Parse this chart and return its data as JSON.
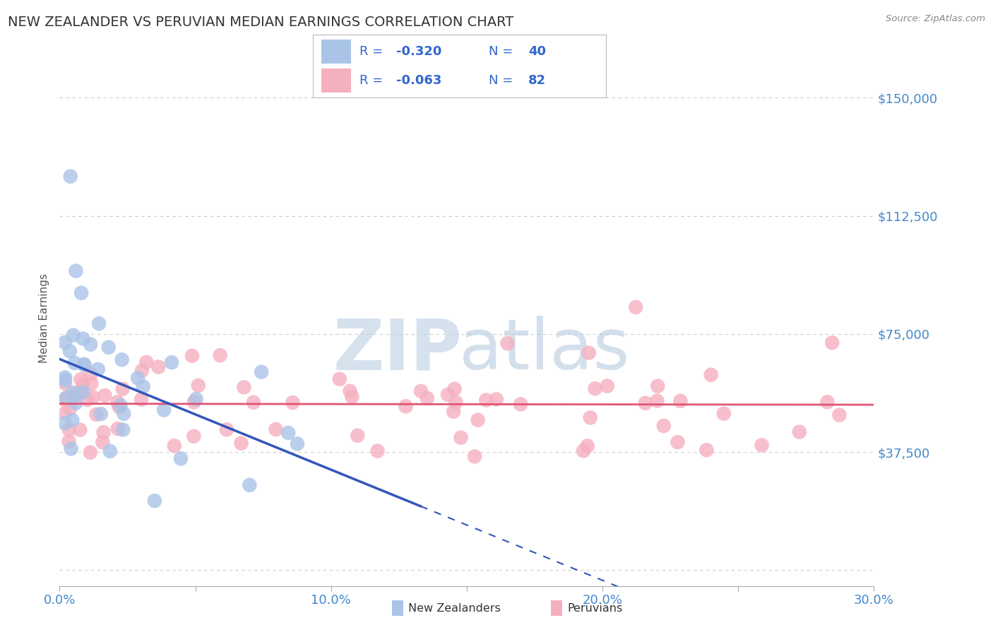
{
  "title": "NEW ZEALANDER VS PERUVIAN MEDIAN EARNINGS CORRELATION CHART",
  "source": "Source: ZipAtlas.com",
  "ylabel": "Median Earnings",
  "xlim": [
    0.0,
    0.3
  ],
  "ylim": [
    -5000,
    165000
  ],
  "yticks": [
    0,
    37500,
    75000,
    112500,
    150000
  ],
  "ytick_labels": [
    "",
    "$37,500",
    "$75,000",
    "$112,500",
    "$150,000"
  ],
  "xticks": [
    0.0,
    0.05,
    0.1,
    0.15,
    0.2,
    0.25,
    0.3
  ],
  "xtick_labels": [
    "0.0%",
    "",
    "10.0%",
    "",
    "20.0%",
    "",
    "30.0%"
  ],
  "grid_color": "#cccccc",
  "background_color": "#ffffff",
  "nz_color": "#aac4e8",
  "peru_color": "#f5b0c0",
  "nz_line_color": "#3355bb",
  "peru_line_color": "#e05575",
  "legend_nz_r": "-0.320",
  "legend_nz_n": "40",
  "legend_peru_r": "-0.063",
  "legend_peru_n": "82",
  "tick_color": "#4488cc",
  "title_color": "#333333",
  "source_color": "#888888",
  "ylabel_color": "#555555",
  "legend_text_color": "#3366cc",
  "watermark_zip_color": "#c5d5e8",
  "watermark_atlas_color": "#b0c8de"
}
